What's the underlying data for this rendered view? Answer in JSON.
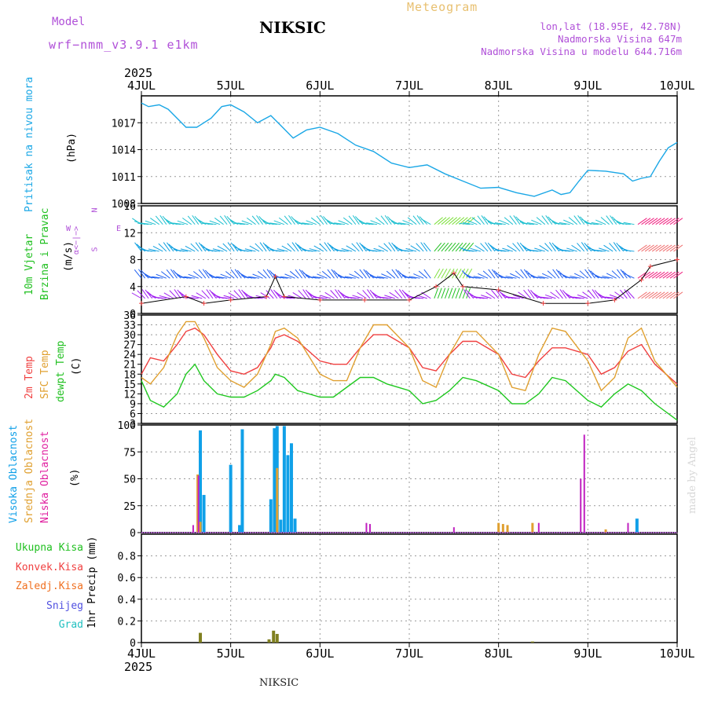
{
  "header": {
    "model_label": "Model",
    "model_name": "wrf−nmm_v3.9.1  e1km",
    "station": "NIKSIC",
    "title": "Meteogram",
    "lonlat": "lon,lat (18.95E, 42.78N)",
    "elevation": "Nadmorska Visina 647m",
    "model_elevation": "Nadmorska Visina u modelu 644.716m"
  },
  "footer": {
    "station": "NIKSIC",
    "credit": "made by Angel"
  },
  "time_axis": {
    "year": "2025",
    "ticks": [
      "4JUL",
      "5JUL",
      "6JUL",
      "7JUL",
      "8JUL",
      "9JUL",
      "10JUL"
    ]
  },
  "colors": {
    "pressure": "#1aa7e6",
    "temp2m": "#f04040",
    "sfc": "#e0a030",
    "dew": "#20c820",
    "high": "#10a0e8",
    "mid": "#e0a030",
    "low": "#c020c0",
    "precip": "#808020"
  },
  "panels": {
    "pressure": {
      "label": "Pritisak na nivou mora",
      "unit": "(hPa)"
    },
    "wind": {
      "label1": "10m Vjetar",
      "label2": "Brzina i Pravac",
      "unit": "(m/s)",
      "compass": [
        "N",
        "W",
        "E",
        "S"
      ],
      "compass_word": "α<−|−>"
    },
    "temp": {
      "l1": "2m Temp",
      "l2": "SFC Temp",
      "l3": "dewpt Temp",
      "unit": "(C)"
    },
    "cloud": {
      "l1": "Visoka Oblacnost",
      "l2": "Srednja Oblacnost",
      "l3": "Niska Oblacnost",
      "unit": "(%)"
    },
    "precip": {
      "items": [
        "Ukupna Kisa",
        "Konvek.Kisa",
        "Zaledj.Kisa",
        "Snijeg",
        "Grad"
      ],
      "unit": "1hr Precip (mm)"
    }
  },
  "chart_data": [
    {
      "type": "line",
      "panel": "pressure",
      "ylabel": "(hPa)",
      "ylim": [
        1008,
        1020
      ],
      "yticks": [
        1008,
        1011,
        1014,
        1017
      ],
      "series": [
        {
          "name": "Pritisak na nivou mora",
          "x": [
            0,
            0.08,
            0.2,
            0.3,
            0.5,
            0.62,
            0.78,
            0.9,
            1.0,
            1.15,
            1.3,
            1.45,
            1.55,
            1.7,
            1.85,
            2.0,
            2.2,
            2.4,
            2.6,
            2.8,
            3.0,
            3.2,
            3.4,
            3.6,
            3.8,
            4.0,
            4.2,
            4.4,
            4.6,
            4.7,
            4.8,
            4.9,
            5.0,
            5.2,
            5.4,
            5.5,
            5.6,
            5.7,
            5.8,
            5.9,
            6.0
          ],
          "values": [
            1019.2,
            1018.8,
            1019.0,
            1018.5,
            1016.5,
            1016.5,
            1017.5,
            1018.8,
            1019.0,
            1018.2,
            1017.0,
            1017.8,
            1016.8,
            1015.3,
            1016.2,
            1016.5,
            1015.8,
            1014.5,
            1013.8,
            1012.5,
            1012.0,
            1012.3,
            1011.3,
            1010.5,
            1009.7,
            1009.8,
            1009.2,
            1008.8,
            1009.5,
            1009.0,
            1009.2,
            1010.5,
            1011.7,
            1011.6,
            1011.3,
            1010.5,
            1010.8,
            1011.0,
            1012.7,
            1014.2,
            1014.8
          ]
        }
      ]
    },
    {
      "type": "line",
      "panel": "wind",
      "ylabel": "(m/s)",
      "ylim": [
        0,
        16
      ],
      "yticks": [
        0,
        4,
        8,
        12,
        16
      ],
      "series": [
        {
          "name": "10m wind speed",
          "x": [
            0,
            0.5,
            0.7,
            1.0,
            1.4,
            1.5,
            1.6,
            2.0,
            2.5,
            3.0,
            3.3,
            3.5,
            3.6,
            4.0,
            4.5,
            5.0,
            5.3,
            5.6,
            5.7,
            6.0
          ],
          "values": [
            1.5,
            2.5,
            1.5,
            2,
            2.5,
            5.5,
            2.5,
            2,
            2,
            2,
            4,
            6,
            4,
            3.5,
            1.5,
            1.5,
            2,
            5,
            7,
            8
          ]
        }
      ]
    },
    {
      "type": "line",
      "panel": "temp",
      "ylabel": "(C)",
      "ylim": [
        3,
        36
      ],
      "yticks": [
        3,
        6,
        9,
        12,
        15,
        18,
        21,
        24,
        27,
        30,
        33,
        36
      ],
      "x": [
        0,
        0.1,
        0.25,
        0.4,
        0.5,
        0.6,
        0.7,
        0.85,
        1.0,
        1.15,
        1.3,
        1.45,
        1.5,
        1.6,
        1.75,
        2.0,
        2.15,
        2.3,
        2.45,
        2.6,
        2.75,
        3.0,
        3.15,
        3.3,
        3.45,
        3.6,
        3.75,
        4.0,
        4.15,
        4.3,
        4.45,
        4.6,
        4.75,
        5.0,
        5.15,
        5.3,
        5.45,
        5.6,
        5.75,
        6.0
      ],
      "series": [
        {
          "name": "2m Temp",
          "values": [
            18,
            23,
            22,
            27,
            31,
            32,
            30,
            24,
            19,
            18,
            20,
            26,
            29,
            30,
            28,
            22,
            21,
            21,
            26,
            30,
            30,
            26,
            20,
            19,
            24,
            28,
            28,
            24,
            18,
            17,
            22,
            26,
            26,
            24,
            18,
            20,
            25,
            27,
            21,
            15
          ]
        },
        {
          "name": "SFC Temp",
          "values": [
            17,
            15,
            20,
            30,
            34,
            34,
            29,
            20,
            16,
            14,
            18,
            27,
            31,
            32,
            29,
            18,
            16,
            16,
            26,
            33,
            33,
            26,
            16,
            14,
            24,
            31,
            31,
            24,
            14,
            13,
            24,
            32,
            31,
            22,
            13,
            17,
            29,
            32,
            22,
            14
          ]
        },
        {
          "name": "dewpt Temp",
          "values": [
            16,
            10,
            8,
            12,
            18,
            21,
            16,
            12,
            11,
            11,
            13,
            16,
            18,
            17,
            13,
            11,
            11,
            14,
            17,
            17,
            15,
            13,
            9,
            10,
            13,
            17,
            16,
            13,
            9,
            9,
            12,
            17,
            16,
            10,
            8,
            12,
            15,
            13,
            9,
            4
          ]
        }
      ]
    },
    {
      "type": "bar",
      "panel": "cloud",
      "ylabel": "(%)",
      "ylim": [
        0,
        100
      ],
      "yticks": [
        0,
        25,
        50,
        75,
        100
      ],
      "series": [
        {
          "name": "Visoka Oblacnost",
          "points": [
            [
              0.66,
              95
            ],
            [
              0.7,
              35
            ],
            [
              1.0,
              63
            ],
            [
              1.1,
              7
            ],
            [
              1.13,
              96
            ],
            [
              1.45,
              31
            ],
            [
              1.49,
              97
            ],
            [
              1.52,
              99
            ],
            [
              1.56,
              12
            ],
            [
              1.6,
              99
            ],
            [
              1.64,
              72
            ],
            [
              1.68,
              83
            ],
            [
              1.72,
              13
            ],
            [
              5.55,
              13
            ]
          ]
        },
        {
          "name": "Srednja Oblacnost",
          "points": [
            [
              0.63,
              54
            ],
            [
              0.66,
              10
            ],
            [
              1.52,
              60
            ],
            [
              4.0,
              9
            ],
            [
              4.05,
              8
            ],
            [
              4.1,
              7
            ],
            [
              4.38,
              9
            ],
            [
              5.2,
              3
            ]
          ]
        },
        {
          "name": "Niska Oblacnost",
          "points": [
            [
              0.58,
              7
            ],
            [
              0.64,
              53
            ],
            [
              2.52,
              9
            ],
            [
              2.56,
              8
            ],
            [
              3.5,
              5
            ],
            [
              4.45,
              9
            ],
            [
              4.92,
              50
            ],
            [
              4.96,
              91
            ],
            [
              5.45,
              9
            ]
          ]
        }
      ]
    },
    {
      "type": "bar",
      "panel": "precip",
      "ylabel": "1hr Precip (mm)",
      "ylim": [
        0,
        1
      ],
      "yticks": [
        0,
        0.2,
        0.4,
        0.6,
        0.8
      ],
      "series": [
        {
          "name": "Ukupna Kisa",
          "points": [
            [
              0.66,
              0.09
            ],
            [
              1.43,
              0.03
            ],
            [
              1.48,
              0.11
            ],
            [
              1.52,
              0.08
            ],
            [
              4.38,
              0.01
            ]
          ]
        }
      ]
    }
  ]
}
